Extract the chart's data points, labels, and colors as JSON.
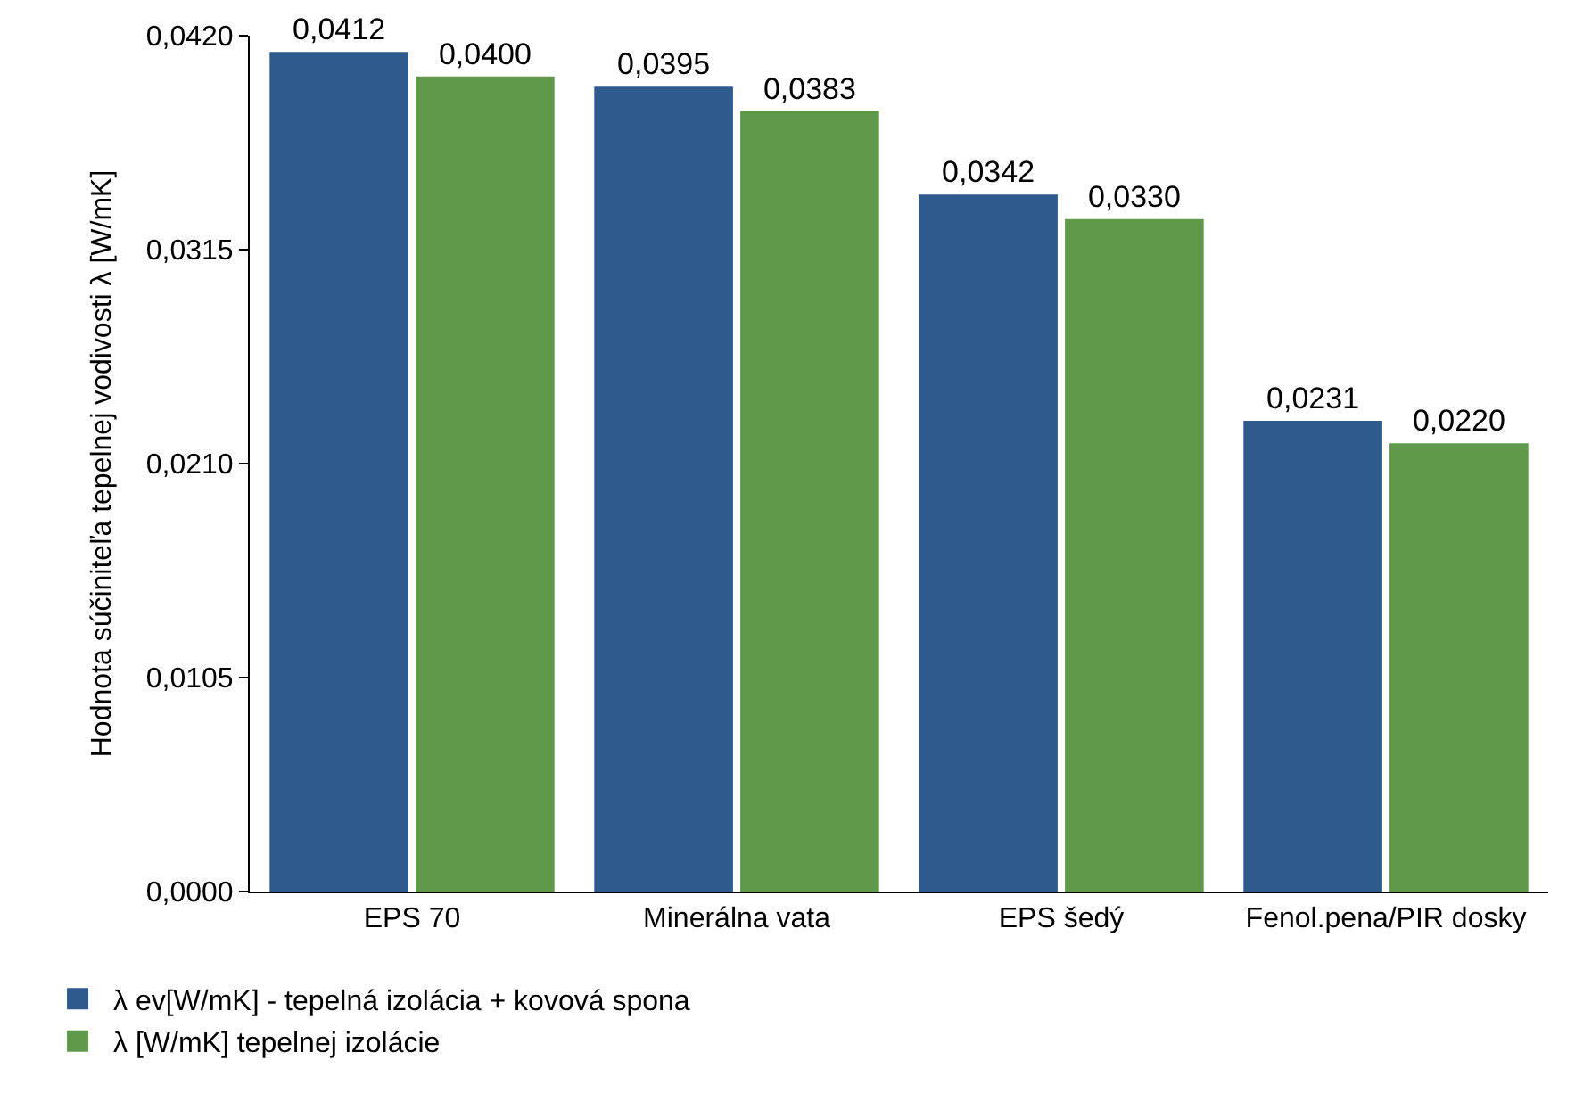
{
  "chart_data": {
    "type": "bar",
    "ylabel": "Hodnota súčiniteľa tepelnej vodivosti λ [W/mK]",
    "categories": [
      "EPS 70",
      "Minerálna vata",
      "EPS šedý",
      "Fenol.pena/PIR dosky"
    ],
    "series": [
      {
        "name": "λ ev[W/mK] - tepelná izolácia + kovová spona",
        "color": "#2e5a8e",
        "values": [
          0.0412,
          0.0395,
          0.0342,
          0.0231
        ],
        "value_labels": [
          "0,0412",
          "0,0395",
          "0,0342",
          "0,0231"
        ]
      },
      {
        "name": "λ [W/mK] tepelnej izolácie",
        "color": "#5e9a4a",
        "values": [
          0.04,
          0.0383,
          0.033,
          0.022
        ],
        "value_labels": [
          "0,0400",
          "0,0383",
          "0,0330",
          "0,0220"
        ]
      }
    ],
    "ylim": [
      0,
      0.042
    ],
    "yticks": [
      {
        "value": 0,
        "label": "0,0000"
      },
      {
        "value": 0.0105,
        "label": "0,0105"
      },
      {
        "value": 0.021,
        "label": "0,0210"
      },
      {
        "value": 0.0315,
        "label": "0,0315"
      },
      {
        "value": 0.042,
        "label": "0,0420"
      }
    ],
    "legend": "bottom left"
  }
}
